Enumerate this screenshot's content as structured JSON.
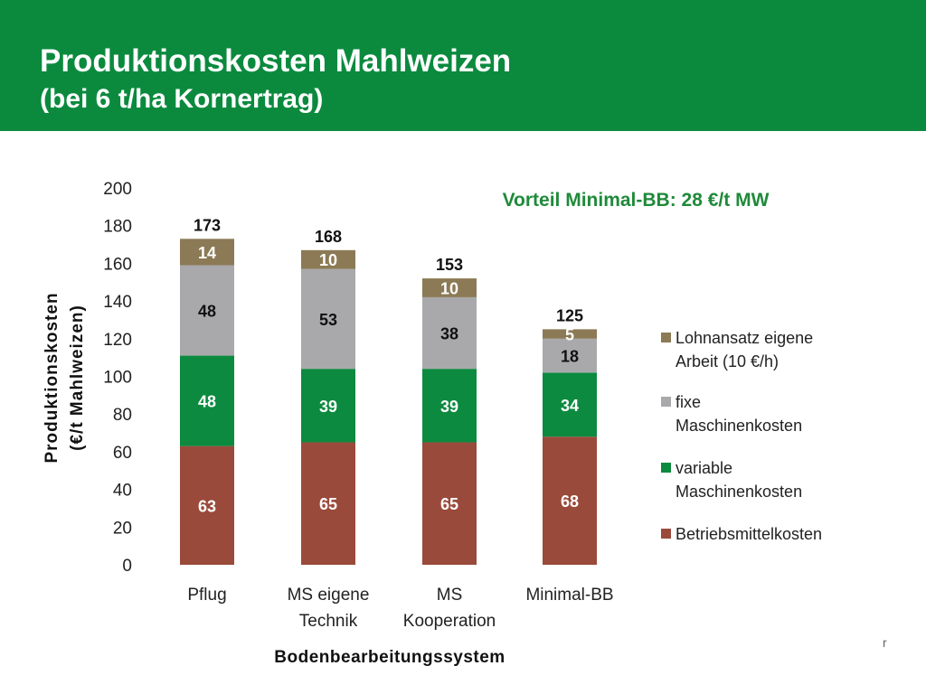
{
  "header": {
    "title": "Produktionskosten Mahlweizen",
    "subtitle": "(bei 6 t/ha Kornertrag)"
  },
  "footer": {
    "mark": "r"
  },
  "colors": {
    "header_bg": "#0b8a3e",
    "Lohnansatz": "#8b7a55",
    "fixe": "#a9a9ab",
    "variable": "#0c8a3f",
    "Betriebsmittel": "#9a4a3b",
    "annotation": "#1f8a3a"
  },
  "chart_data": {
    "type": "bar",
    "stacked": true,
    "categories": [
      "Pflug",
      "MS eigene Technik",
      "MS Kooperation",
      "Minimal-BB"
    ],
    "category_lines": [
      [
        "Pflug"
      ],
      [
        "MS eigene",
        "Technik"
      ],
      [
        "MS",
        "Kooperation"
      ],
      [
        "Minimal-BB"
      ]
    ],
    "series": [
      {
        "name": "Betriebsmittelkosten",
        "values": [
          63,
          65,
          65,
          68
        ]
      },
      {
        "name": "variable Maschinenkosten",
        "values": [
          48,
          39,
          39,
          34
        ]
      },
      {
        "name": "fixe Maschinenkosten",
        "values": [
          48,
          53,
          38,
          18
        ]
      },
      {
        "name": "Lohnansatz eigene Arbeit (10 €/h)",
        "values": [
          14,
          10,
          10,
          5
        ]
      }
    ],
    "totals": [
      173,
      168,
      153,
      125
    ],
    "ylim": [
      0,
      200
    ],
    "yticks": [
      "0",
      "20",
      "40",
      "60",
      "80",
      "100",
      "120",
      "140",
      "160",
      "180",
      "200"
    ],
    "ylabel_lines": [
      "Produktionskosten",
      "(€/t Mahlweizen)"
    ],
    "xlabel": "Bodenbearbeitungssystem",
    "annotation": "Vorteil Minimal-BB: 28 €/t MW",
    "legend": {
      "position": "right",
      "entries": [
        {
          "lines": [
            "Lohnansatz eigene",
            "Arbeit (10 €/h)"
          ]
        },
        {
          "lines": [
            "fixe",
            "Maschinenkosten"
          ]
        },
        {
          "lines": [
            "variable",
            "Maschinenkosten"
          ]
        },
        {
          "lines": [
            "Betriebsmittelkosten"
          ]
        }
      ]
    },
    "grid": false
  }
}
